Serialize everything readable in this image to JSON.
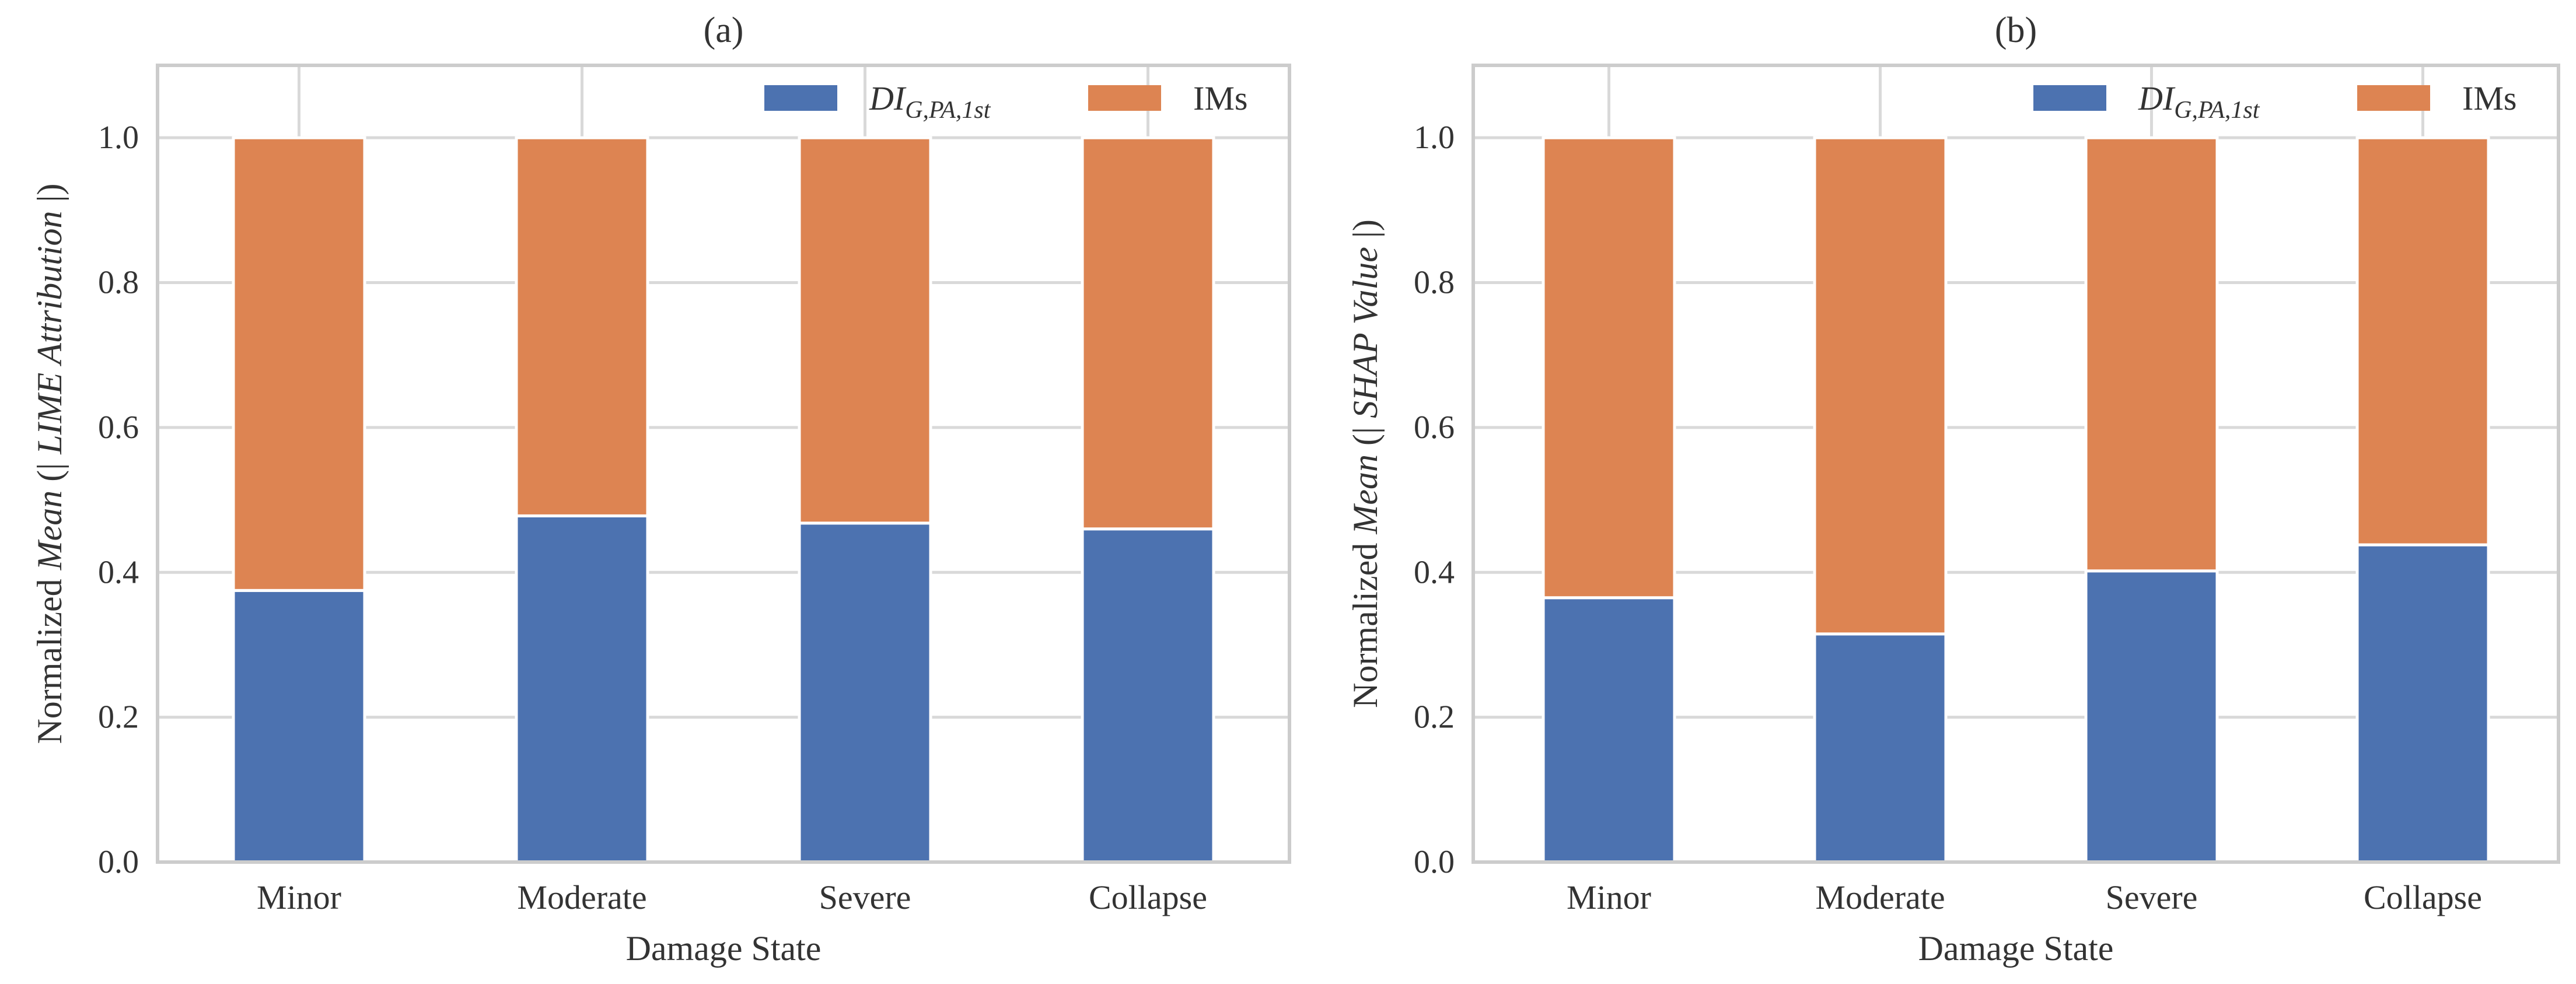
{
  "colors": {
    "series_0": "#4c72b0",
    "series_1": "#dd8452",
    "grid": "#d9d9d9",
    "frame": "#cccccc",
    "text": "#333333"
  },
  "chart_data": [
    {
      "type": "bar",
      "stacked": true,
      "title": "(a)",
      "xlabel": "Damage State",
      "ylabel": {
        "prefix": "Normalized ",
        "func": "Mean",
        "open": " (| ",
        "term": "LIME Attribution",
        "close": " |)"
      },
      "categories": [
        "Minor",
        "Moderate",
        "Severe",
        "Collapse"
      ],
      "series": [
        {
          "name": "DI_G,PA,1st",
          "label": {
            "base": "DI",
            "subscript": "G,PA,1st"
          },
          "values": [
            0.375,
            0.478,
            0.468,
            0.46
          ]
        },
        {
          "name": "IMs",
          "label": {
            "base": "IMs",
            "subscript": ""
          },
          "values": [
            0.625,
            0.522,
            0.532,
            0.54
          ]
        }
      ],
      "ylim": [
        0,
        1.1
      ],
      "yticks": [
        "0.0",
        "0.2",
        "0.4",
        "0.6",
        "0.8",
        "1.0"
      ],
      "grid": true,
      "legend": "top-right, horizontal"
    },
    {
      "type": "bar",
      "stacked": true,
      "title": "(b)",
      "xlabel": "Damage State",
      "ylabel": {
        "prefix": "Normalized ",
        "func": "Mean",
        "open": " (| ",
        "term": "SHAP Value",
        "close": " |)"
      },
      "categories": [
        "Minor",
        "Moderate",
        "Severe",
        "Collapse"
      ],
      "series": [
        {
          "name": "DI_G,PA,1st",
          "label": {
            "base": "DI",
            "subscript": "G,PA,1st"
          },
          "values": [
            0.365,
            0.315,
            0.402,
            0.438
          ]
        },
        {
          "name": "IMs",
          "label": {
            "base": "IMs",
            "subscript": ""
          },
          "values": [
            0.635,
            0.685,
            0.598,
            0.562
          ]
        }
      ],
      "ylim": [
        0,
        1.1
      ],
      "yticks": [
        "0.0",
        "0.2",
        "0.4",
        "0.6",
        "0.8",
        "1.0"
      ],
      "grid": true,
      "legend": "top-right, horizontal"
    }
  ]
}
